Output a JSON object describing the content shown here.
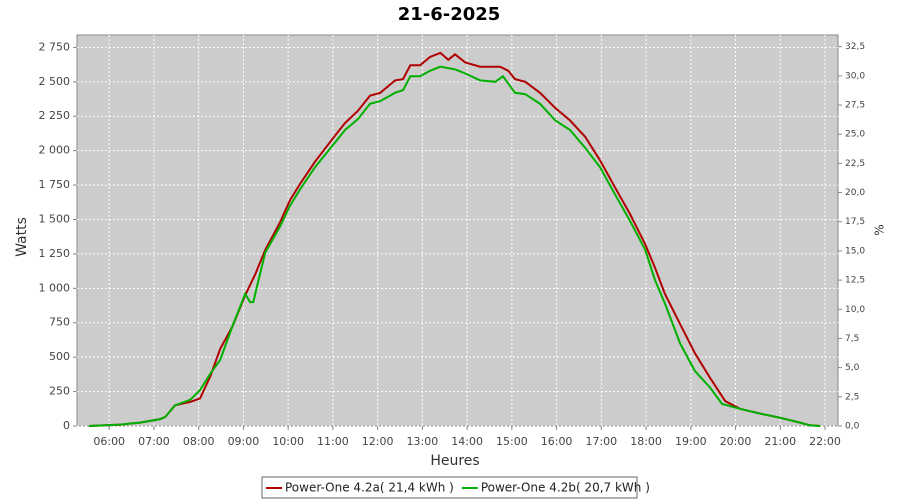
{
  "chart_data": {
    "type": "line",
    "title": "21-6-2025",
    "x_label": "Heures",
    "y_label": "Watts",
    "y2_label": "%",
    "xlim": [
      5.28,
      22.29
    ],
    "ylim": [
      0,
      2840
    ],
    "y2lim": [
      0,
      33.5
    ],
    "xticks": [
      {
        "value": 6,
        "label": "06:00"
      },
      {
        "value": 7,
        "label": "07:00"
      },
      {
        "value": 8,
        "label": "08:00"
      },
      {
        "value": 9,
        "label": "09:00"
      },
      {
        "value": 10,
        "label": "10:00"
      },
      {
        "value": 11,
        "label": "11:00"
      },
      {
        "value": 12,
        "label": "12:00"
      },
      {
        "value": 13,
        "label": "13:00"
      },
      {
        "value": 14,
        "label": "14:00"
      },
      {
        "value": 15,
        "label": "15:00"
      },
      {
        "value": 16,
        "label": "16:00"
      },
      {
        "value": 17,
        "label": "17:00"
      },
      {
        "value": 18,
        "label": "18:00"
      },
      {
        "value": 19,
        "label": "19:00"
      },
      {
        "value": 20,
        "label": "20:00"
      },
      {
        "value": 21,
        "label": "21:00"
      },
      {
        "value": 22,
        "label": "22:00"
      }
    ],
    "yticks": [
      0,
      250,
      500,
      750,
      {
        "value": 1000,
        "label": "1 000"
      },
      {
        "value": 1250,
        "label": "1 250"
      },
      {
        "value": 1500,
        "label": "1 500"
      },
      {
        "value": 1750,
        "label": "1 750"
      },
      {
        "value": 2000,
        "label": "2 000"
      },
      {
        "value": 2250,
        "label": "2 250"
      },
      {
        "value": 2500,
        "label": "2 500"
      },
      {
        "value": 2750,
        "label": "2 750"
      }
    ],
    "y2ticks": [
      {
        "value": 0,
        "label": "0,0"
      },
      {
        "value": 2.5,
        "label": "2,5"
      },
      {
        "value": 5,
        "label": "5,0"
      },
      {
        "value": 7.5,
        "label": "7,5"
      },
      {
        "value": 10,
        "label": "10,0"
      },
      {
        "value": 12.5,
        "label": "12,5"
      },
      {
        "value": 15,
        "label": "15,0"
      },
      {
        "value": 17.5,
        "label": "17,5"
      },
      {
        "value": 20,
        "label": "20,0"
      },
      {
        "value": 22.5,
        "label": "22,5"
      },
      {
        "value": 25,
        "label": "25,0"
      },
      {
        "value": 27.5,
        "label": "27,5"
      },
      {
        "value": 30,
        "label": "30,0"
      },
      {
        "value": 32.5,
        "label": "32,5"
      }
    ],
    "grid": true,
    "series": [
      {
        "name": "Power-One 4.2a( 21,4 kWh )",
        "color": "#b00000",
        "x": [
          5.55,
          6.25,
          6.69,
          7.14,
          7.25,
          7.47,
          7.81,
          8.03,
          8.26,
          8.48,
          8.75,
          9.04,
          9.26,
          9.49,
          9.82,
          10.04,
          10.27,
          10.6,
          11.05,
          11.27,
          11.56,
          11.83,
          12.06,
          12.39,
          12.57,
          12.73,
          12.95,
          13.17,
          13.4,
          13.58,
          13.73,
          13.96,
          14.29,
          14.74,
          14.92,
          15.07,
          15.3,
          15.63,
          15.97,
          16.3,
          16.64,
          16.97,
          17.31,
          17.64,
          17.98,
          18.2,
          18.42,
          18.76,
          19.09,
          19.43,
          19.77,
          20.1,
          20.55,
          20.99,
          21.44,
          21.66,
          21.89
        ],
        "values": [
          0,
          10,
          25,
          50,
          65,
          150,
          175,
          200,
          360,
          560,
          720,
          950,
          1100,
          1280,
          1480,
          1640,
          1760,
          1920,
          2110,
          2200,
          2290,
          2400,
          2420,
          2510,
          2520,
          2620,
          2620,
          2680,
          2710,
          2660,
          2700,
          2640,
          2610,
          2610,
          2580,
          2520,
          2500,
          2420,
          2310,
          2220,
          2100,
          1930,
          1730,
          1540,
          1320,
          1150,
          960,
          740,
          530,
          350,
          180,
          125,
          90,
          60,
          25,
          5,
          0
        ]
      },
      {
        "name": "Power-One 4.2b( 20,7 kWh )",
        "color": "#00b000",
        "x": [
          5.55,
          6.25,
          6.69,
          7.14,
          7.25,
          7.47,
          7.81,
          8.03,
          8.26,
          8.48,
          8.75,
          9.04,
          9.15,
          9.22,
          9.33,
          9.49,
          9.82,
          10.04,
          10.27,
          10.6,
          11.05,
          11.27,
          11.56,
          11.83,
          12.06,
          12.39,
          12.57,
          12.73,
          12.95,
          13.17,
          13.4,
          13.73,
          13.96,
          14.29,
          14.63,
          14.8,
          15.07,
          15.3,
          15.63,
          15.97,
          16.3,
          16.64,
          16.97,
          17.31,
          17.64,
          17.98,
          18.2,
          18.42,
          18.76,
          19.09,
          19.43,
          19.7,
          20.1,
          20.55,
          20.99,
          21.44,
          21.66,
          21.89
        ],
        "values": [
          0,
          10,
          25,
          50,
          65,
          150,
          190,
          260,
          380,
          480,
          720,
          960,
          900,
          900,
          1050,
          1260,
          1450,
          1600,
          1720,
          1880,
          2060,
          2150,
          2230,
          2340,
          2360,
          2420,
          2440,
          2540,
          2540,
          2580,
          2610,
          2590,
          2560,
          2510,
          2500,
          2540,
          2420,
          2410,
          2340,
          2220,
          2150,
          2020,
          1880,
          1680,
          1490,
          1280,
          1060,
          890,
          600,
          400,
          280,
          160,
          125,
          90,
          60,
          25,
          5,
          0
        ]
      }
    ]
  }
}
